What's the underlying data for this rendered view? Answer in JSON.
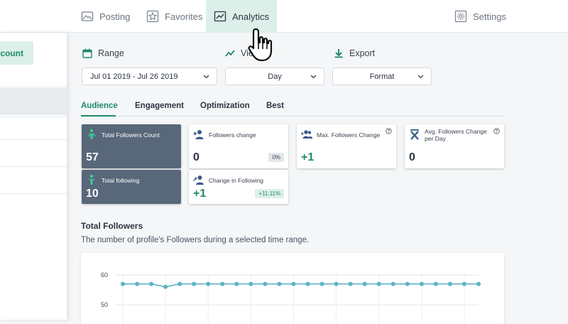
{
  "nav": {
    "posting": "Posting",
    "favorites": "Favorites",
    "analytics": "Analytics",
    "settings": "Settings"
  },
  "sidebar": {
    "account_button": "Account"
  },
  "controls": {
    "range_label": "Range",
    "view_label": "View",
    "export_label": "Export",
    "range_value": "Jul 01 2019 - Jul 26 2019",
    "view_value": "Day",
    "export_value": "Format"
  },
  "tabs": [
    "Audience",
    "Engagement",
    "Optimization",
    "Best"
  ],
  "cards": {
    "total_followers": {
      "title": "Total Followers Count",
      "value": "57"
    },
    "followers_change": {
      "title": "Followers change",
      "value": "0",
      "badge": "0%"
    },
    "max_followers_change": {
      "title": "Max. Followers Change",
      "value": "+1"
    },
    "avg_followers_change": {
      "title": "Avg. Followers Change per Day",
      "value": "0"
    },
    "total_following": {
      "title": "Total following",
      "value": "10"
    },
    "change_in_following": {
      "title": "Change in Following",
      "value": "+1",
      "badge": "+11.11%"
    }
  },
  "section": {
    "title": "Total Followers",
    "description": "The number of profile's Followers during a selected time range."
  },
  "colors": {
    "accent": "#1f8a68",
    "accent_light": "#dcefe9",
    "dark_card": "#58677a",
    "line": "#5ab4c4"
  },
  "chart_data": {
    "type": "line",
    "y_ticks": [
      "60",
      "50"
    ],
    "ylim": [
      45,
      62
    ],
    "series": [
      {
        "values": [
          57,
          57,
          57,
          56,
          57,
          57,
          57,
          57,
          57,
          57,
          57,
          57,
          57,
          57,
          57,
          57,
          57,
          57,
          57,
          57,
          57,
          57,
          57,
          57,
          57,
          57
        ]
      }
    ]
  }
}
